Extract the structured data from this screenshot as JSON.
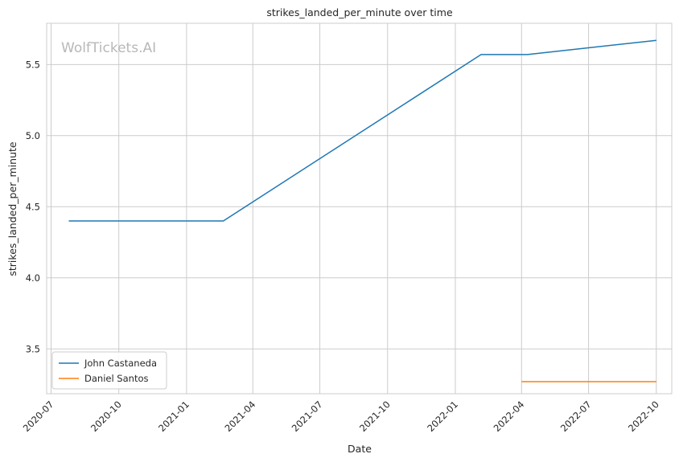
{
  "chart_data": {
    "type": "line",
    "title": "strikes_landed_per_minute over time",
    "xlabel": "Date",
    "ylabel": "strikes_landed_per_minute",
    "watermark": "WolfTickets.AI",
    "x_ticks": [
      "2020-07",
      "2020-10",
      "2021-01",
      "2021-04",
      "2021-07",
      "2021-10",
      "2022-01",
      "2022-04",
      "2022-07",
      "2022-10"
    ],
    "y_ticks": [
      "3.5",
      "4.0",
      "4.5",
      "5.0",
      "5.5"
    ],
    "xlim": [
      "2020-06-25",
      "2022-10-22"
    ],
    "ylim": [
      3.185,
      5.79
    ],
    "grid": true,
    "legend_position": "lower-left",
    "series": [
      {
        "name": "John Castaneda",
        "color": "#1f77b4",
        "x": [
          "2020-07-25",
          "2021-02-20",
          "2022-02-05",
          "2022-04-09",
          "2022-10-01"
        ],
        "y": [
          4.4,
          4.4,
          5.57,
          5.57,
          5.67
        ]
      },
      {
        "name": "Daniel Santos",
        "color": "#ff7f0e",
        "x": [
          "2022-04-01",
          "2022-10-01"
        ],
        "y": [
          3.27,
          3.27
        ]
      }
    ]
  }
}
